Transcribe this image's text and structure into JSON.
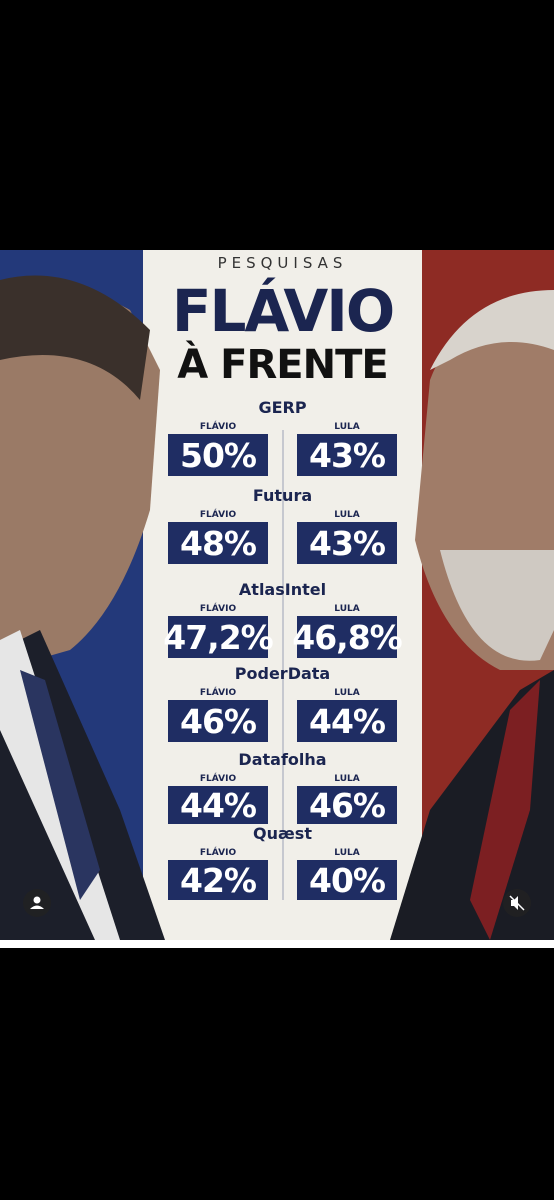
{
  "header": {
    "kicker": "PESQUISAS",
    "title_line1": "FLÁVIO",
    "title_line2": "À FRENTE"
  },
  "polls": [
    {
      "name": "GERP",
      "left_label": "FLÁVIO",
      "left_value": "50%",
      "right_label": "LULA",
      "right_value": "43%"
    },
    {
      "name": "Futura",
      "left_label": "FLÁVIO",
      "left_value": "48%",
      "right_label": "LULA",
      "right_value": "43%"
    },
    {
      "name": "AtlasIntel",
      "left_label": "FLÁVIO",
      "left_value": "47,2%",
      "right_label": "LULA",
      "right_value": "46,8%"
    },
    {
      "name": "PoderData",
      "left_label": "FLÁVIO",
      "left_value": "46%",
      "right_label": "LULA",
      "right_value": "44%"
    },
    {
      "name": "Datafolha",
      "left_label": "FLÁVIO",
      "left_value": "44%",
      "right_label": "LULA",
      "right_value": "46%"
    },
    {
      "name": "Quæst",
      "left_label": "FLÁVIO",
      "left_value": "42%",
      "right_label": "LULA",
      "right_value": "40%"
    }
  ]
}
